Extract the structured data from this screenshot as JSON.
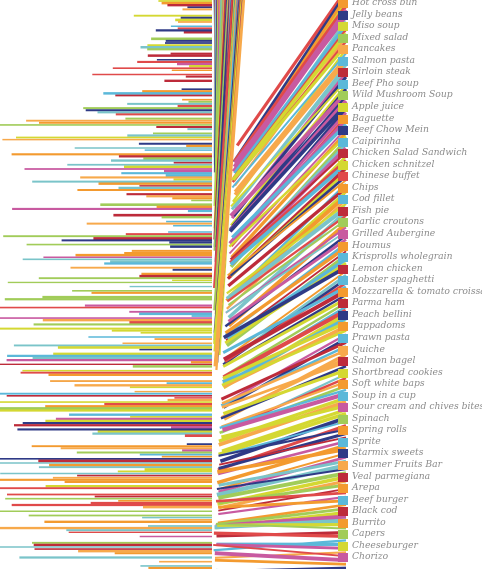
{
  "palette": [
    "#f39a2f",
    "#d4d832",
    "#bd2b3a",
    "#5bb8d9",
    "#2f3a86",
    "#f7a94b",
    "#a1cc59",
    "#c85aa0",
    "#e04a4a",
    "#7ac4c9"
  ],
  "labels": [
    "Hot cross bun",
    "Jelly beans",
    "Miso soup",
    "Mixed salad",
    "Pancakes",
    "Salmon pasta",
    "Sirloin steak",
    "Beef Pho soup",
    "Wild Mushroom Soup",
    "Apple juice",
    "Baguette",
    "Beef Chow Mein",
    "Caipirinha",
    "Chicken Salad Sandwich",
    "Chicken schnitzel",
    "Chinese buffet",
    "Chips",
    "Cod fillet",
    "Fish pie",
    "Garlic croutons",
    "Grilled Aubergine",
    "Houmus",
    "Krisprolls wholegrain",
    "Lemon chicken",
    "Lobster spaghetti",
    "Mozzarella & tomato croissant",
    "Parma ham",
    "Peach bellini",
    "Pappadoms",
    "Prawn pasta",
    "Quiche",
    "Salmon bagel",
    "Shortbread cookies",
    "Soft white baps",
    "Soup in a cup",
    "Sour cream and chives bites",
    "Spinach",
    "Spring rolls",
    "Sprite",
    "Starmix sweets",
    "Summer Fruits Bar",
    "Veal parmegiana",
    "Arepa",
    "Beef burger",
    "Black cod",
    "Burrito",
    "Capers",
    "Cheeseburger",
    "Chorizo"
  ],
  "item_colors": [
    "#f39a2f",
    "#2f3a86",
    "#d4d832",
    "#a1cc59",
    "#f7a94b",
    "#5bb8d9",
    "#bd2b3a",
    "#5bb8d9",
    "#a1cc59",
    "#d4d832",
    "#f39a2f",
    "#2f3a86",
    "#5bb8d9",
    "#bd2b3a",
    "#d4d832",
    "#e04a4a",
    "#f39a2f",
    "#5bb8d9",
    "#bd2b3a",
    "#a1cc59",
    "#c85aa0",
    "#f39a2f",
    "#5bb8d9",
    "#bd2b3a",
    "#5bb8d9",
    "#f39a2f",
    "#bd2b3a",
    "#2f3a86",
    "#f39a2f",
    "#5bb8d9",
    "#f7a94b",
    "#bd2b3a",
    "#d4d832",
    "#f39a2f",
    "#5bb8d9",
    "#c85aa0",
    "#a1cc59",
    "#f39a2f",
    "#5bb8d9",
    "#2f3a86",
    "#f7a94b",
    "#bd2b3a",
    "#f39a2f",
    "#5bb8d9",
    "#bd2b3a",
    "#f39a2f",
    "#a1cc59",
    "#d4d832",
    "#c85aa0"
  ]
}
